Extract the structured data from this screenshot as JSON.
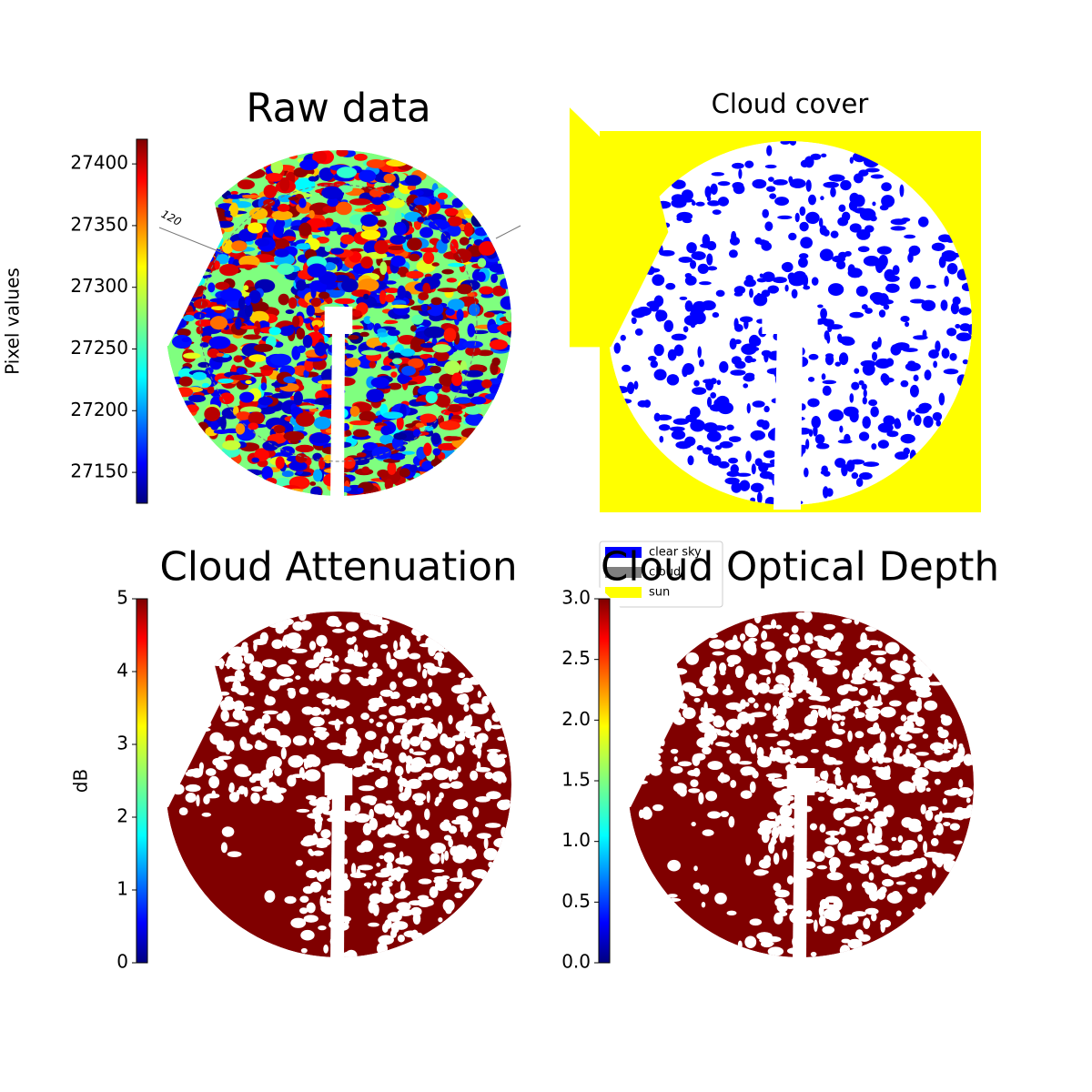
{
  "chart_data": [
    {
      "type": "image",
      "title": "Raw data",
      "ylabel": "Pixel values",
      "colormap": "jet",
      "ylim": [
        27125,
        27420
      ],
      "yticks": [
        27150,
        27200,
        27250,
        27300,
        27350,
        27400
      ],
      "annotations": [
        "120"
      ]
    },
    {
      "type": "categorical-image",
      "title": "Cloud cover",
      "legend": "lower left",
      "series": [
        {
          "name": "clear sky",
          "color": "#0000ff"
        },
        {
          "name": "cloud",
          "color": "#808080"
        },
        {
          "name": "sun",
          "color": "#ffff00"
        }
      ]
    },
    {
      "type": "image",
      "title": "Cloud Attenuation",
      "ylabel": "dB",
      "colormap": "jet",
      "ylim": [
        0,
        5
      ],
      "yticks": [
        0,
        1,
        2,
        3,
        4,
        5
      ]
    },
    {
      "type": "image",
      "title": "Cloud Optical Depth",
      "colormap": "jet",
      "ylim": [
        0,
        3
      ],
      "yticks": [
        {
          "value": 0,
          "label": "0.0"
        },
        {
          "value": 0.5,
          "label": "0.5"
        },
        {
          "value": 1,
          "label": "1.0"
        },
        {
          "value": 1.5,
          "label": "1.5"
        },
        {
          "value": 2,
          "label": "2.0"
        },
        {
          "value": 2.5,
          "label": "2.5"
        },
        {
          "value": 3,
          "label": "3.0"
        }
      ]
    }
  ]
}
